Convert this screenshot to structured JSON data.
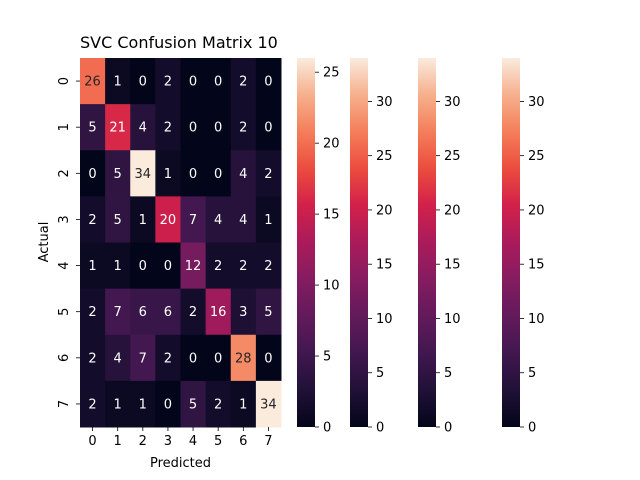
{
  "chart_data": {
    "type": "heatmap",
    "title": "SVC Confusion Matrix 10",
    "xlabel": "Predicted",
    "ylabel": "Actual",
    "x_ticks": [
      "0",
      "1",
      "2",
      "3",
      "4",
      "5",
      "6",
      "7"
    ],
    "y_ticks": [
      "0",
      "1",
      "2",
      "3",
      "4",
      "5",
      "6",
      "7"
    ],
    "values": [
      [
        26,
        1,
        0,
        2,
        0,
        0,
        2,
        0
      ],
      [
        5,
        21,
        4,
        2,
        0,
        0,
        2,
        0
      ],
      [
        0,
        5,
        34,
        1,
        0,
        0,
        4,
        2
      ],
      [
        2,
        5,
        1,
        20,
        7,
        4,
        4,
        1
      ],
      [
        1,
        1,
        0,
        0,
        12,
        2,
        2,
        2
      ],
      [
        2,
        7,
        6,
        6,
        2,
        16,
        3,
        5
      ],
      [
        2,
        4,
        7,
        2,
        0,
        0,
        28,
        0
      ],
      [
        2,
        1,
        1,
        0,
        5,
        2,
        1,
        34
      ]
    ],
    "colorbars": [
      {
        "max": 26,
        "ticks": [
          0,
          5,
          10,
          15,
          20,
          25
        ]
      },
      {
        "max": 34,
        "ticks": [
          0,
          5,
          10,
          15,
          20,
          25,
          30
        ]
      },
      {
        "max": 34,
        "ticks": [
          0,
          5,
          10,
          15,
          20,
          25,
          30
        ]
      },
      {
        "max": 34,
        "ticks": [
          0,
          5,
          10,
          15,
          20,
          25,
          30
        ]
      }
    ],
    "colormap": "rocket"
  }
}
